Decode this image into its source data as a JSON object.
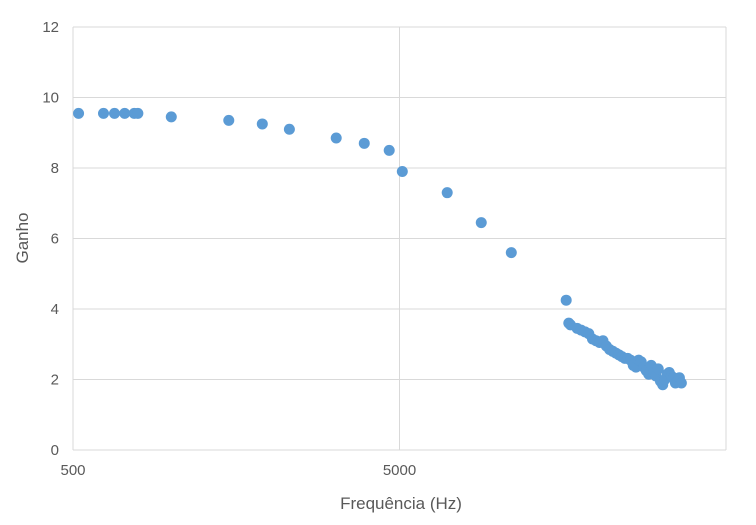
{
  "chart_data": {
    "type": "scatter",
    "title": "",
    "xlabel": "Frequência (Hz)",
    "ylabel": "Ganho",
    "x_scale": "log",
    "xlim": [
      500,
      50000
    ],
    "ylim": [
      0,
      12
    ],
    "x_ticks": [
      500,
      5000
    ],
    "x_tick_labels": [
      "500",
      "5000"
    ],
    "y_ticks": [
      0,
      2,
      4,
      6,
      8,
      10,
      12
    ],
    "y_tick_labels": [
      "0",
      "2",
      "4",
      "6",
      "8",
      "10",
      "12"
    ],
    "grid": true,
    "legend": "none",
    "marker_color": "#5B9BD5",
    "grid_color": "#d9d9d9",
    "series": [
      {
        "x": [
          520,
          620,
          670,
          720,
          770,
          790,
          1000,
          1500,
          1900,
          2300,
          3200,
          3900,
          4650,
          5100,
          7000,
          8900,
          11000,
          16200,
          16500,
          16700,
          17500,
          18000,
          18500,
          19000,
          19500,
          20000,
          20500,
          21000,
          21500,
          22000,
          22500,
          23000,
          23500,
          24000,
          24500,
          25000,
          25500,
          26000,
          26500,
          27000,
          27500,
          28000,
          28500,
          29000,
          29500,
          30000,
          30500,
          31000,
          31500,
          32000,
          32500,
          33000,
          33500,
          34000,
          34500,
          35000,
          35500,
          36000,
          36500
        ],
        "y": [
          9.55,
          9.55,
          9.55,
          9.55,
          9.55,
          9.55,
          9.45,
          9.35,
          9.25,
          9.1,
          8.85,
          8.7,
          8.5,
          7.9,
          7.3,
          6.45,
          5.6,
          4.25,
          3.6,
          3.55,
          3.45,
          3.4,
          3.35,
          3.3,
          3.15,
          3.1,
          3.05,
          3.1,
          2.95,
          2.85,
          2.8,
          2.75,
          2.7,
          2.65,
          2.6,
          2.6,
          2.55,
          2.4,
          2.35,
          2.55,
          2.5,
          2.35,
          2.25,
          2.15,
          2.4,
          2.2,
          2.1,
          2.3,
          1.95,
          1.85,
          2.0,
          2.15,
          2.2,
          2.1,
          2.05,
          1.9,
          1.95,
          2.05,
          1.9
        ]
      }
    ]
  }
}
